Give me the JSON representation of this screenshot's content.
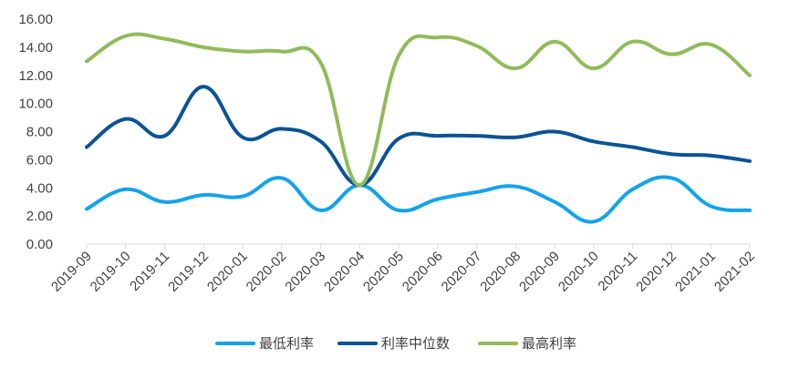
{
  "chart_data": {
    "type": "line",
    "title": "",
    "xlabel": "",
    "ylabel": "",
    "x": [
      "2019-09",
      "2019-10",
      "2019-11",
      "2019-12",
      "2020-01",
      "2020-02",
      "2020-03",
      "2020-04",
      "2020-05",
      "2020-06",
      "2020-07",
      "2020-08",
      "2020-09",
      "2020-10",
      "2020-11",
      "2020-12",
      "2021-01",
      "2021-02"
    ],
    "y_ticks": [
      "0.00",
      "2.00",
      "4.00",
      "6.00",
      "8.00",
      "10.00",
      "12.00",
      "14.00",
      "16.00"
    ],
    "ylim": [
      0,
      16
    ],
    "grid": false,
    "smooth": true,
    "legend_position": "bottom",
    "series": [
      {
        "name": "最低利率",
        "color": "#13A3EC",
        "values": [
          2.5,
          3.9,
          3.0,
          3.5,
          3.4,
          4.7,
          2.4,
          4.2,
          2.4,
          3.2,
          3.7,
          4.1,
          3.0,
          1.6,
          3.9,
          4.7,
          2.7,
          2.4
        ]
      },
      {
        "name": "利率中位数",
        "color": "#0B5394",
        "values": [
          6.9,
          8.9,
          7.7,
          11.2,
          7.6,
          8.2,
          7.3,
          4.2,
          7.5,
          7.7,
          7.7,
          7.6,
          8.0,
          7.3,
          6.9,
          6.4,
          6.3,
          5.9
        ]
      },
      {
        "name": "最高利率",
        "color": "#92BA5B",
        "values": [
          13.0,
          14.8,
          14.6,
          14.0,
          13.7,
          13.7,
          12.9,
          4.2,
          13.4,
          14.7,
          14.1,
          12.5,
          14.4,
          12.5,
          14.4,
          13.5,
          14.2,
          12.0
        ]
      }
    ]
  }
}
